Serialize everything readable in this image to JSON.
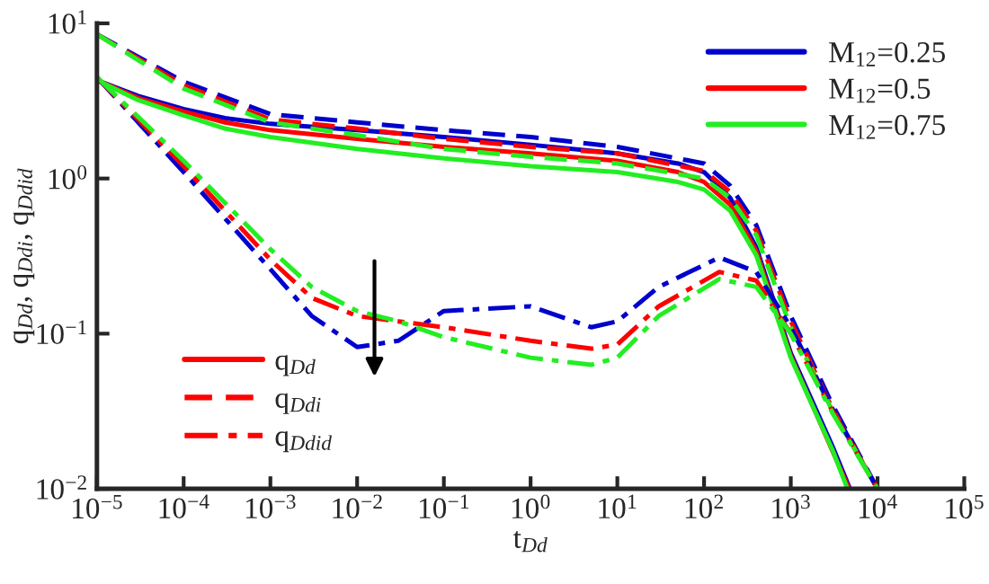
{
  "chart_data": {
    "type": "line",
    "xlabel": "t$_{Dd}$",
    "ylabel": "q$_{Dd}$, q$_{Ddi}$, q$_{Ddid}$",
    "log": "xy",
    "grid": false,
    "legend": "top right",
    "marker": "none",
    "xlim": [
      1e-05,
      100000
    ],
    "ylim": [
      0.01,
      10
    ],
    "xticks": [
      {
        "value": 1e-05,
        "label": "10$^{−5}$"
      },
      {
        "value": 0.0001,
        "label": "10$^{−4}$"
      },
      {
        "value": 0.001,
        "label": "10$^{−3}$"
      },
      {
        "value": 0.01,
        "label": "10$^{−2}$"
      },
      {
        "value": 0.1,
        "label": "10$^{−1}$"
      },
      {
        "value": 1,
        "label": "10$^{0}$"
      },
      {
        "value": 10,
        "label": "10$^{1}$"
      },
      {
        "value": 100,
        "label": "10$^{2}$"
      },
      {
        "value": 1000,
        "label": "10$^{3}$"
      },
      {
        "value": 10000,
        "label": "10$^{4}$"
      },
      {
        "value": 100000,
        "label": "10$^{5}$"
      }
    ],
    "yticks": [
      {
        "value": 0.01,
        "label": "10$^{−2}$"
      },
      {
        "value": 0.1,
        "label": "10$^{−1}$"
      },
      {
        "value": 1,
        "label": "10$^{0}$"
      },
      {
        "value": 10,
        "label": "10$^{1}$"
      }
    ],
    "annotations": [
      "q$_{Dd}$",
      "q$_{Ddi}$",
      "q$_{Ddid}$"
    ],
    "series": [
      {
        "name": "M$_{12}$=0.25",
        "color": "#0000cd",
        "line_style": "solid",
        "x": [
          1e-05,
          3e-05,
          0.0001,
          0.0003,
          0.001,
          0.01,
          0.1,
          1,
          10,
          50,
          100,
          200,
          400,
          1000,
          3000,
          4800
        ],
        "values": [
          4.3,
          3.4,
          2.8,
          2.45,
          2.25,
          2.05,
          1.85,
          1.65,
          1.45,
          1.25,
          1.1,
          0.75,
          0.36,
          0.075,
          0.019,
          0.01
        ]
      },
      {
        "name": "M$_{12}$=0.5",
        "color": "#ff0000",
        "line_style": "solid",
        "x": [
          1e-05,
          3e-05,
          0.0001,
          0.0003,
          0.001,
          0.01,
          0.1,
          1,
          10,
          50,
          100,
          200,
          400,
          1000,
          4700
        ],
        "values": [
          4.3,
          3.3,
          2.7,
          2.3,
          2.05,
          1.8,
          1.6,
          1.45,
          1.3,
          1.1,
          0.95,
          0.68,
          0.34,
          0.072,
          0.01
        ]
      },
      {
        "name": "M$_{12}$=0.75",
        "color": "#22ee22",
        "line_style": "solid",
        "x": [
          1e-05,
          3e-05,
          0.0001,
          0.0003,
          0.001,
          0.01,
          0.1,
          1,
          10,
          50,
          100,
          200,
          400,
          1000,
          3000,
          4500
        ],
        "values": [
          4.3,
          3.2,
          2.55,
          2.1,
          1.85,
          1.55,
          1.35,
          1.2,
          1.1,
          0.95,
          0.85,
          0.62,
          0.32,
          0.07,
          0.018,
          0.01
        ]
      },
      {
        "color": "#0000cd",
        "line_style": "dashed",
        "x": [
          1e-05,
          0.0001,
          0.001,
          0.01,
          0.1,
          1,
          10,
          100,
          200,
          400,
          1000,
          3000,
          10000
        ],
        "values": [
          8.5,
          4.2,
          2.6,
          2.3,
          2.05,
          1.85,
          1.6,
          1.25,
          0.9,
          0.5,
          0.13,
          0.035,
          0.01
        ]
      },
      {
        "color": "#ff0000",
        "line_style": "dashed",
        "x": [
          1e-05,
          0.0001,
          0.001,
          0.01,
          0.1,
          1,
          10,
          100,
          200,
          400,
          1000,
          3000,
          10000
        ],
        "values": [
          8.5,
          4.0,
          2.4,
          2.1,
          1.8,
          1.6,
          1.45,
          1.12,
          0.82,
          0.46,
          0.12,
          0.033,
          0.01
        ]
      },
      {
        "color": "#22ee22",
        "line_style": "dashed",
        "x": [
          1e-05,
          0.0001,
          0.001,
          0.01,
          0.1,
          1,
          10,
          100,
          200,
          400,
          1000,
          3000,
          10000
        ],
        "values": [
          8.5,
          3.8,
          2.3,
          1.9,
          1.55,
          1.38,
          1.25,
          1.0,
          0.75,
          0.43,
          0.11,
          0.032,
          0.01
        ]
      },
      {
        "color": "#0000cd",
        "line_style": "dashdot",
        "x": [
          1e-05,
          0.0001,
          0.001,
          0.003,
          0.01,
          0.03,
          0.1,
          1,
          5,
          10,
          30,
          150,
          400,
          1000,
          3000,
          10000
        ],
        "values": [
          4.5,
          1.1,
          0.26,
          0.13,
          0.082,
          0.09,
          0.14,
          0.15,
          0.11,
          0.12,
          0.2,
          0.31,
          0.25,
          0.11,
          0.033,
          0.01
        ]
      },
      {
        "color": "#ff0000",
        "line_style": "dashdot",
        "x": [
          1e-05,
          0.0001,
          0.001,
          0.003,
          0.01,
          0.03,
          0.1,
          1,
          5,
          10,
          30,
          150,
          400,
          1000,
          3000,
          10000
        ],
        "values": [
          4.5,
          1.2,
          0.3,
          0.17,
          0.13,
          0.12,
          0.11,
          0.09,
          0.08,
          0.085,
          0.15,
          0.25,
          0.22,
          0.1,
          0.032,
          0.01
        ]
      },
      {
        "color": "#22ee22",
        "line_style": "dashdot",
        "x": [
          1e-05,
          0.0001,
          0.001,
          0.003,
          0.01,
          0.03,
          0.1,
          1,
          5,
          10,
          30,
          150,
          400,
          1000,
          3000,
          10000
        ],
        "values": [
          4.5,
          1.3,
          0.35,
          0.2,
          0.14,
          0.12,
          0.095,
          0.07,
          0.063,
          0.07,
          0.13,
          0.225,
          0.2,
          0.1,
          0.031,
          0.01
        ]
      }
    ]
  }
}
